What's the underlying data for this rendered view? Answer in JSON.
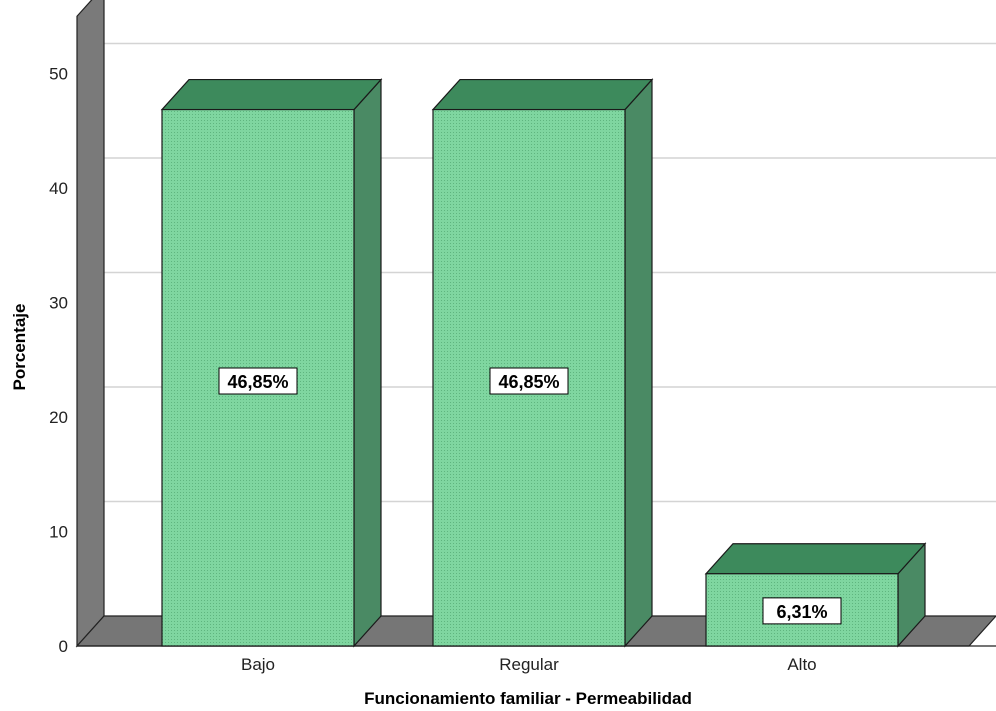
{
  "chart_data": {
    "type": "bar",
    "categories": [
      "Bajo",
      "Regular",
      "Alto"
    ],
    "values": [
      46.85,
      46.85,
      6.31
    ],
    "data_labels": [
      "46,85%",
      "46,85%",
      "6,31%"
    ],
    "title": "",
    "xlabel": "Funcionamiento familiar - Permeabilidad",
    "ylabel": "Porcentaje",
    "ylim": [
      0,
      50
    ],
    "yticks": [
      0,
      10,
      20,
      30,
      40,
      50
    ],
    "grid": true,
    "style": "3d",
    "colors": {
      "bar_front": "#7fd6a0",
      "bar_top": "#3d8a5c",
      "bar_side": "#4a8a64",
      "wall": "#7a7a7a",
      "floor": "#767676",
      "grid": "#d4d4d4"
    }
  }
}
